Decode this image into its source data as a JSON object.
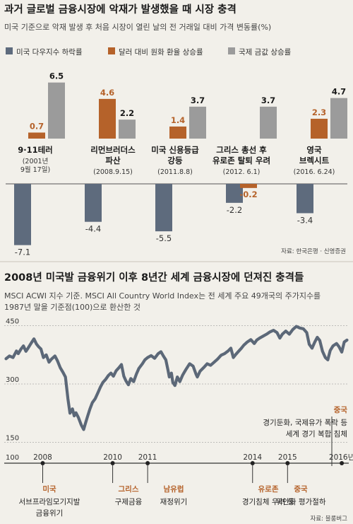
{
  "colors": {
    "dow": "#5e6b7d",
    "krw": "#b5622a",
    "gold": "#9b9b9b",
    "line": "#5c6878",
    "accent": "#b5622a"
  },
  "top": {
    "title": "과거 글로벌 금융시장에 악재가 발생했을 때 시장 충격",
    "subtitle": "미국 기준으로 악재 발생 후 처음 시장이 열린 날의 전 거래일 대비 가격 변동률(%)",
    "source": "자료: 한국은행 · 신영증권"
  },
  "bottom": {
    "title": "2008년 미국발 금융위기 이후 8년간 세계 금융시장에 던져진 충격들",
    "subtitle_line1": "MSCI ACWI 지수 기준. MSCI All Country World Index는 전 세계 주요 49개국의 주가지수를",
    "subtitle_line2": "1987년 말을 기준점(100)으로 환산한 것",
    "source": "자료: 블룸버그"
  },
  "chart_data": [
    {
      "type": "bar",
      "series": [
        {
          "name": "미국 다우지수 하락률",
          "values": [
            -7.1,
            -4.4,
            -5.5,
            -2.2,
            -3.4
          ]
        },
        {
          "name": "달러 대비 원화 환율 상승률",
          "values": [
            0.7,
            4.6,
            1.4,
            -0.2,
            2.3
          ]
        },
        {
          "name": "국제 금값 상승률",
          "values": [
            6.5,
            2.2,
            3.7,
            3.7,
            4.7
          ]
        }
      ],
      "categories": [
        {
          "lines": [
            "9·11테러"
          ],
          "date_lines": [
            "(2001년",
            "9월 17일)"
          ]
        },
        {
          "lines": [
            "리먼브러더스",
            "파산"
          ],
          "date_lines": [
            "(2008.9.15)"
          ]
        },
        {
          "lines": [
            "미국 신용등급",
            "강등"
          ],
          "date_lines": [
            "(2011.8.8)"
          ]
        },
        {
          "lines": [
            "그리스 총선 후",
            "유로존 탈퇴 우려"
          ],
          "date_lines": [
            "(2012. 6.1)"
          ]
        },
        {
          "lines": [
            "영국",
            "브렉시트"
          ],
          "date_lines": [
            "(2016. 6.24)"
          ]
        }
      ]
    },
    {
      "type": "line",
      "y_ticks": [
        150,
        300,
        450
      ],
      "ylim": [
        100,
        460
      ],
      "xlim": [
        2006.9,
        2016.75
      ],
      "year_ticks": [
        "2008",
        "2010",
        "2011",
        "2014",
        "2015",
        "2016년"
      ],
      "year_tick_values": [
        2008,
        2010,
        2011,
        2014,
        2015,
        2016.55
      ],
      "baseline_label": "100",
      "points": [
        [
          2006.95,
          365
        ],
        [
          2007.05,
          372
        ],
        [
          2007.15,
          368
        ],
        [
          2007.25,
          385
        ],
        [
          2007.3,
          378
        ],
        [
          2007.38,
          390
        ],
        [
          2007.45,
          398
        ],
        [
          2007.52,
          384
        ],
        [
          2007.58,
          392
        ],
        [
          2007.67,
          405
        ],
        [
          2007.75,
          416
        ],
        [
          2007.82,
          403
        ],
        [
          2007.88,
          396
        ],
        [
          2007.95,
          390
        ],
        [
          2008.02,
          368
        ],
        [
          2008.1,
          375
        ],
        [
          2008.18,
          356
        ],
        [
          2008.25,
          364
        ],
        [
          2008.35,
          372
        ],
        [
          2008.42,
          360
        ],
        [
          2008.5,
          342
        ],
        [
          2008.58,
          330
        ],
        [
          2008.65,
          318
        ],
        [
          2008.72,
          262
        ],
        [
          2008.78,
          225
        ],
        [
          2008.85,
          236
        ],
        [
          2008.9,
          218
        ],
        [
          2008.95,
          226
        ],
        [
          2009.02,
          214
        ],
        [
          2009.1,
          195
        ],
        [
          2009.17,
          183
        ],
        [
          2009.22,
          198
        ],
        [
          2009.28,
          216
        ],
        [
          2009.35,
          236
        ],
        [
          2009.42,
          252
        ],
        [
          2009.5,
          262
        ],
        [
          2009.58,
          278
        ],
        [
          2009.65,
          292
        ],
        [
          2009.72,
          304
        ],
        [
          2009.8,
          312
        ],
        [
          2009.88,
          322
        ],
        [
          2009.95,
          328
        ],
        [
          2010.02,
          320
        ],
        [
          2010.1,
          334
        ],
        [
          2010.18,
          342
        ],
        [
          2010.25,
          350
        ],
        [
          2010.32,
          320
        ],
        [
          2010.38,
          308
        ],
        [
          2010.45,
          298
        ],
        [
          2010.52,
          314
        ],
        [
          2010.6,
          306
        ],
        [
          2010.68,
          326
        ],
        [
          2010.75,
          340
        ],
        [
          2010.85,
          352
        ],
        [
          2010.92,
          362
        ],
        [
          2011.0,
          368
        ],
        [
          2011.1,
          373
        ],
        [
          2011.2,
          366
        ],
        [
          2011.3,
          378
        ],
        [
          2011.38,
          383
        ],
        [
          2011.45,
          372
        ],
        [
          2011.52,
          362
        ],
        [
          2011.58,
          336
        ],
        [
          2011.62,
          318
        ],
        [
          2011.68,
          328
        ],
        [
          2011.72,
          304
        ],
        [
          2011.78,
          296
        ],
        [
          2011.85,
          318
        ],
        [
          2011.92,
          306
        ],
        [
          2012.0,
          323
        ],
        [
          2012.1,
          338
        ],
        [
          2012.2,
          352
        ],
        [
          2012.3,
          346
        ],
        [
          2012.38,
          326
        ],
        [
          2012.42,
          318
        ],
        [
          2012.5,
          333
        ],
        [
          2012.6,
          342
        ],
        [
          2012.7,
          352
        ],
        [
          2012.8,
          348
        ],
        [
          2012.9,
          356
        ],
        [
          2013.0,
          364
        ],
        [
          2013.1,
          374
        ],
        [
          2013.2,
          378
        ],
        [
          2013.3,
          385
        ],
        [
          2013.38,
          392
        ],
        [
          2013.45,
          368
        ],
        [
          2013.52,
          376
        ],
        [
          2013.6,
          384
        ],
        [
          2013.68,
          392
        ],
        [
          2013.75,
          400
        ],
        [
          2013.85,
          408
        ],
        [
          2013.95,
          414
        ],
        [
          2014.05,
          404
        ],
        [
          2014.12,
          413
        ],
        [
          2014.2,
          418
        ],
        [
          2014.3,
          423
        ],
        [
          2014.4,
          428
        ],
        [
          2014.5,
          434
        ],
        [
          2014.6,
          438
        ],
        [
          2014.7,
          432
        ],
        [
          2014.78,
          418
        ],
        [
          2014.85,
          428
        ],
        [
          2014.95,
          436
        ],
        [
          2015.05,
          428
        ],
        [
          2015.15,
          440
        ],
        [
          2015.25,
          448
        ],
        [
          2015.35,
          444
        ],
        [
          2015.45,
          442
        ],
        [
          2015.55,
          432
        ],
        [
          2015.62,
          402
        ],
        [
          2015.7,
          392
        ],
        [
          2015.78,
          408
        ],
        [
          2015.85,
          420
        ],
        [
          2015.92,
          412
        ],
        [
          2016.0,
          384
        ],
        [
          2016.08,
          368
        ],
        [
          2016.15,
          362
        ],
        [
          2016.22,
          386
        ],
        [
          2016.3,
          398
        ],
        [
          2016.4,
          404
        ],
        [
          2016.47,
          396
        ],
        [
          2016.55,
          382
        ],
        [
          2016.62,
          408
        ],
        [
          2016.7,
          413
        ]
      ],
      "top_annotation": {
        "region": "중국",
        "line1": "경기둔화, 국제유가 폭락 등",
        "line2": "세계 경기 복합 침체"
      },
      "annotations": [
        {
          "region": "미국",
          "line1": "서브프라임모기지발",
          "line2": "금융위기"
        },
        {
          "region": "그리스",
          "line1": "구제금융",
          "line2": ""
        },
        {
          "region": "남유럽",
          "line1": "재정위기",
          "line2": ""
        },
        {
          "region": "유로존",
          "line1": "경기침체 우려 등",
          "line2": ""
        },
        {
          "region": "중국",
          "line1": "위안화 평가절하",
          "line2": ""
        }
      ]
    }
  ]
}
